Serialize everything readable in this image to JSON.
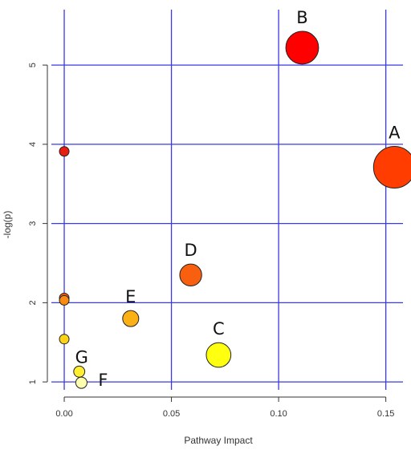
{
  "chart_data": {
    "type": "scatter",
    "title": "",
    "xlabel": "Pathway Impact",
    "ylabel": "-log(p)",
    "xlim": [
      -0.006,
      0.158
    ],
    "ylim": [
      0.9,
      5.7
    ],
    "xticks": [
      0.0,
      0.05,
      0.1,
      0.15
    ],
    "xtick_labels": [
      "0.00",
      "0.05",
      "0.10",
      "0.15"
    ],
    "yticks": [
      1,
      2,
      3,
      4,
      5
    ],
    "ytick_labels": [
      "1",
      "2",
      "3",
      "4",
      "5"
    ],
    "grid": true,
    "grid_color": "#3a3ae0",
    "points": [
      {
        "x": 0.111,
        "y": 5.22,
        "label": "B",
        "color": "#ff0000"
      },
      {
        "x": 0.154,
        "y": 3.71,
        "label": "A",
        "color": "#ff3d00"
      },
      {
        "x": 0.0,
        "y": 3.91,
        "label": "",
        "color": "#e81c10"
      },
      {
        "x": 0.059,
        "y": 2.35,
        "label": "D",
        "color": "#f86010"
      },
      {
        "x": 0.0,
        "y": 2.06,
        "label": "",
        "color": "#f25a10"
      },
      {
        "x": 0.0,
        "y": 2.03,
        "label": "",
        "color": "#fa8a10"
      },
      {
        "x": 0.031,
        "y": 1.8,
        "label": "E",
        "color": "#fbb015"
      },
      {
        "x": 0.0,
        "y": 1.54,
        "label": "",
        "color": "#ffd21a"
      },
      {
        "x": 0.072,
        "y": 1.34,
        "label": "C",
        "color": "#ffff10"
      },
      {
        "x": 0.007,
        "y": 1.13,
        "label": "G",
        "color": "#ffef30"
      },
      {
        "x": 0.008,
        "y": 0.99,
        "label": "F",
        "color": "#ffffb0"
      }
    ]
  }
}
